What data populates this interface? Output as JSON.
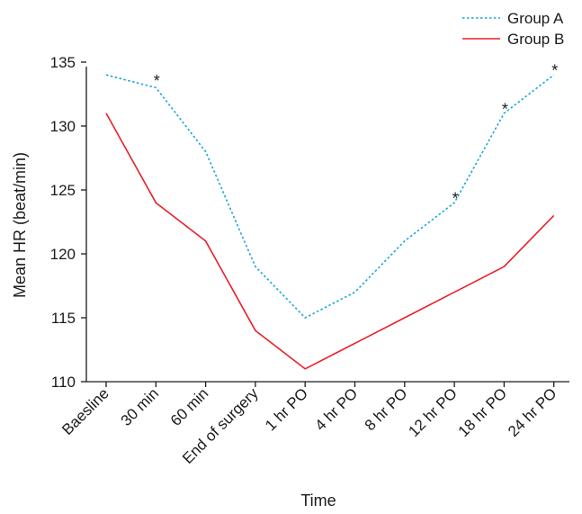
{
  "chart_data": {
    "type": "line",
    "title": "",
    "xlabel": "Time",
    "ylabel": "Mean HR (beat/min)",
    "categories": [
      "Baesline",
      "30 min",
      "60 min",
      "End of surgery",
      "1 hr PO",
      "4 hr PO",
      "8 hr PO",
      "12 hr PO",
      "18 hr PO",
      "24 hr PO"
    ],
    "ylim": [
      110,
      135
    ],
    "yticks": [
      110,
      115,
      120,
      125,
      130,
      135
    ],
    "grid": false,
    "legend_position": "top-right",
    "series": [
      {
        "name": "Group A",
        "color": "#1ba6d9",
        "style": "dotted",
        "values": [
          134,
          133,
          128,
          119,
          115,
          117,
          121,
          124,
          131,
          134
        ]
      },
      {
        "name": "Group B",
        "color": "#e8202a",
        "style": "solid",
        "values": [
          131,
          124,
          121,
          114,
          111,
          113,
          115,
          117,
          119,
          123
        ]
      }
    ],
    "annotations": [
      {
        "text": "*",
        "category": "30 min",
        "y": 133.8
      },
      {
        "text": "*",
        "category": "12 hr PO",
        "y": 124.6
      },
      {
        "text": "*",
        "category": "18 hr PO",
        "y": 131.6
      },
      {
        "text": "*",
        "category": "24 hr PO",
        "y": 134.6
      }
    ]
  }
}
